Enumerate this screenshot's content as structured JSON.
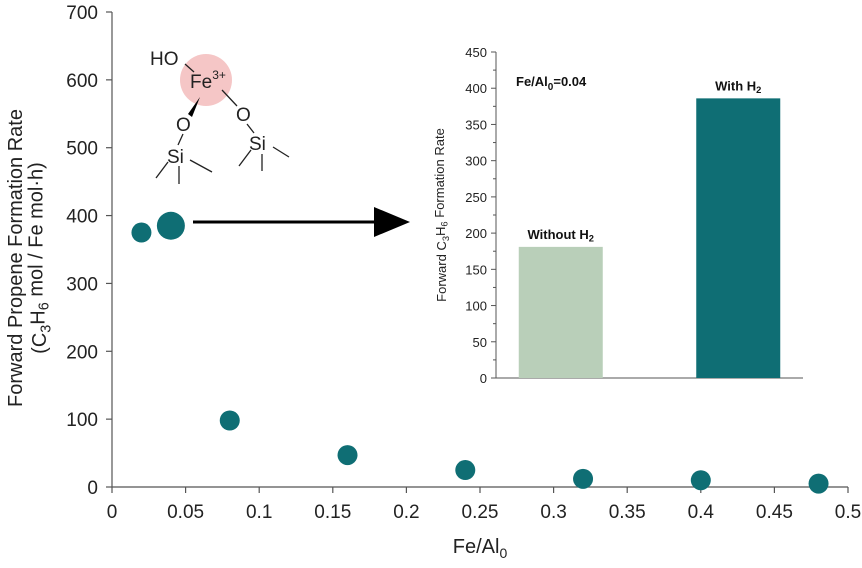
{
  "chart_data": [
    {
      "type": "scatter",
      "xlabel": "Fe/Al",
      "xlabel_sub": "0",
      "ylabel_line1": "Forward Propene Formation Rate",
      "ylabel_line2": "(C3H6 mol / Fe mol·h)",
      "xlim": [
        0,
        0.5
      ],
      "ylim": [
        0,
        700
      ],
      "x_ticks": [
        "0",
        "0.05",
        "0.1",
        "0.15",
        "0.2",
        "0.25",
        "0.3",
        "0.35",
        "0.4",
        "0.45",
        "0.5"
      ],
      "y_ticks": [
        "0",
        "100",
        "200",
        "300",
        "400",
        "500",
        "600",
        "700"
      ],
      "series": [
        {
          "color": "#0f6e74",
          "points": [
            {
              "x": 0.02,
              "y": 375
            },
            {
              "x": 0.04,
              "y": 385,
              "highlighted": true
            },
            {
              "x": 0.08,
              "y": 98
            },
            {
              "x": 0.16,
              "y": 47
            },
            {
              "x": 0.24,
              "y": 25
            },
            {
              "x": 0.32,
              "y": 12
            },
            {
              "x": 0.4,
              "y": 10
            },
            {
              "x": 0.48,
              "y": 5
            }
          ]
        }
      ]
    },
    {
      "type": "bar",
      "ylabel": "Forward C3H6 Formation Rate",
      "ylim": [
        0,
        450
      ],
      "y_ticks": [
        "0",
        "50",
        "100",
        "150",
        "200",
        "250",
        "300",
        "350",
        "400",
        "450"
      ],
      "annotation": "Fe/Al0=0.04",
      "categories": [
        "Without H2",
        "With H2"
      ],
      "values": [
        181,
        386
      ],
      "colors": [
        "#b9cfb9",
        "#0f6e74"
      ]
    }
  ],
  "structure": {
    "labels": [
      "HO",
      "Fe",
      "3+",
      "O",
      "O",
      "Si",
      "Si"
    ],
    "fe_highlight_color": "#f5c6c6"
  }
}
